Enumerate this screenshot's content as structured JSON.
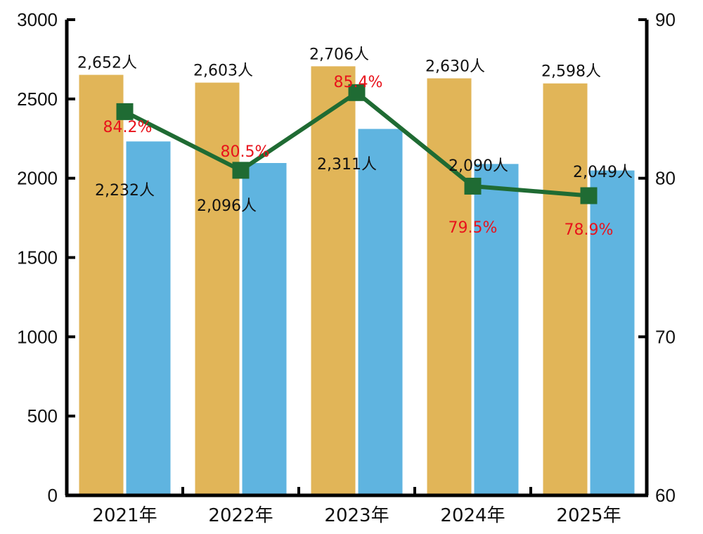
{
  "chart_data": {
    "type": "bar",
    "categories": [
      "2021年",
      "2022年",
      "2023年",
      "2024年",
      "2025年"
    ],
    "series": [
      {
        "type": "bar",
        "axis": "left",
        "color": "#e1b558",
        "values": [
          2652,
          2603,
          2706,
          2630,
          2598
        ],
        "labels": [
          "2,652人",
          "2,603人",
          "2,706人",
          "2,630人",
          "2,598人"
        ]
      },
      {
        "type": "bar",
        "axis": "left",
        "color": "#5fb4e0",
        "values": [
          2232,
          2096,
          2311,
          2090,
          2049
        ],
        "labels": [
          "2,232人",
          "2,096人",
          "2,311人",
          "2,090人",
          "2,049人"
        ]
      },
      {
        "type": "line",
        "axis": "right",
        "color": "#1f6b33",
        "label_color": "#e8121b",
        "values": [
          84.2,
          80.5,
          85.4,
          79.5,
          78.9
        ],
        "labels": [
          "84.2%",
          "80.5%",
          "85.4%",
          "79.5%",
          "78.9%"
        ]
      }
    ],
    "y_left": {
      "min": 0,
      "max": 3000,
      "ticks": [
        "0",
        "500",
        "1000",
        "1500",
        "2000",
        "2500",
        "3000"
      ]
    },
    "y_right": {
      "min": 60,
      "max": 90,
      "ticks": [
        "60",
        "70",
        "80",
        "90"
      ]
    },
    "grid": false,
    "legend": "none"
  }
}
